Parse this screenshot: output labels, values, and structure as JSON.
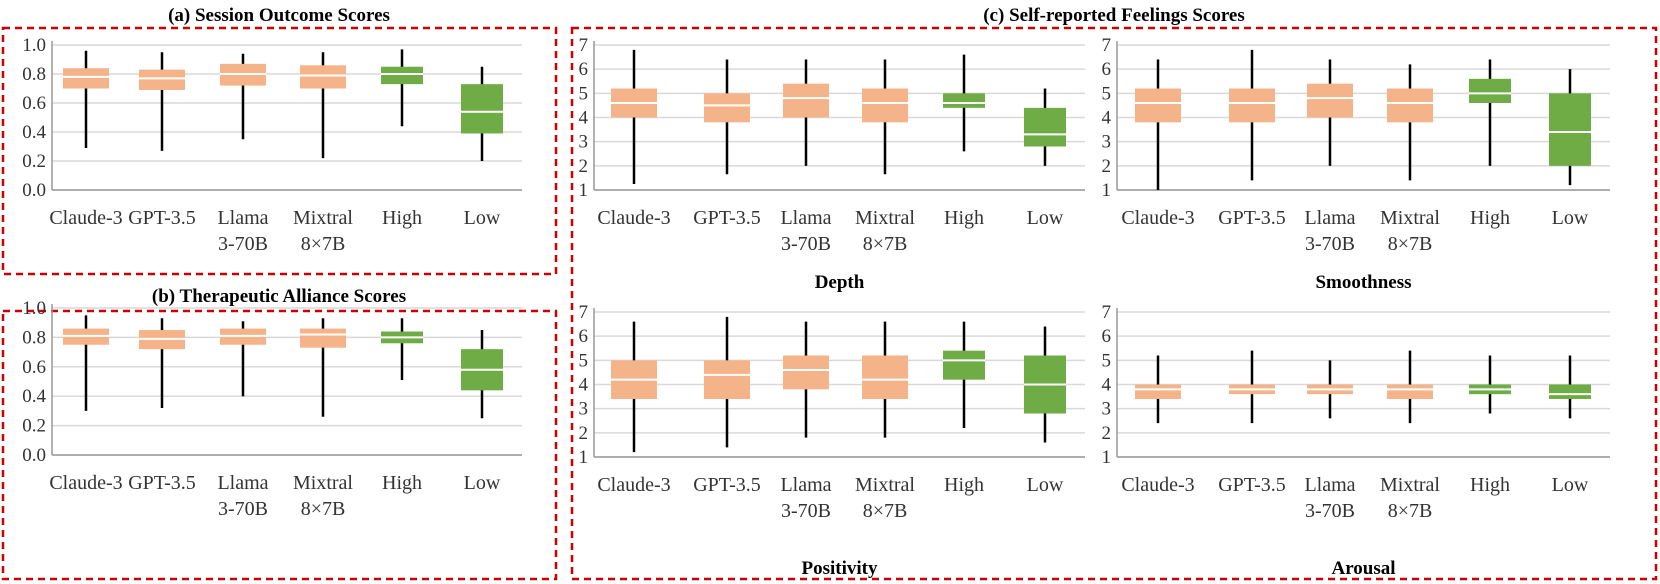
{
  "colors": {
    "llm_box": "#f5b38a",
    "human_box": "#6fac46",
    "median": "#ffffff",
    "whisker": "#000000",
    "grid": "#d9d9d9",
    "border": "#cc0000"
  },
  "panels": {
    "a": {
      "title": "(a) Session Outcome Scores"
    },
    "b": {
      "title": "(b) Therapeutic Alliance Scores"
    },
    "c": {
      "title": "(c) Self-reported Feelings Scores"
    }
  },
  "categories": [
    {
      "line1": "Claude-3",
      "line2": ""
    },
    {
      "line1": "GPT-3.5",
      "line2": ""
    },
    {
      "line1": "Llama",
      "line2": "3-70B"
    },
    {
      "line1": "Mixtral",
      "line2": "8×7B"
    },
    {
      "line1": "High",
      "line2": ""
    },
    {
      "line1": "Low",
      "line2": ""
    }
  ],
  "chart_data": [
    {
      "id": "session",
      "type": "boxplot",
      "title": "(a) Session Outcome Scores",
      "ylim": [
        0.0,
        1.0
      ],
      "yticks": [
        "0.0",
        "0.2",
        "0.4",
        "0.6",
        "0.8",
        "1.0"
      ],
      "boxes": [
        {
          "cat": "Claude-3",
          "min": 0.29,
          "q1": 0.7,
          "median": 0.78,
          "q3": 0.84,
          "max": 0.96,
          "group": "llm"
        },
        {
          "cat": "GPT-3.5",
          "min": 0.27,
          "q1": 0.69,
          "median": 0.77,
          "q3": 0.83,
          "max": 0.95,
          "group": "llm"
        },
        {
          "cat": "Llama 3-70B",
          "min": 0.35,
          "q1": 0.72,
          "median": 0.8,
          "q3": 0.87,
          "max": 0.94,
          "group": "llm"
        },
        {
          "cat": "Mixtral 8×7B",
          "min": 0.22,
          "q1": 0.7,
          "median": 0.79,
          "q3": 0.86,
          "max": 0.95,
          "group": "llm"
        },
        {
          "cat": "High",
          "min": 0.44,
          "q1": 0.73,
          "median": 0.8,
          "q3": 0.85,
          "max": 0.97,
          "group": "human"
        },
        {
          "cat": "Low",
          "min": 0.2,
          "q1": 0.39,
          "median": 0.54,
          "q3": 0.73,
          "max": 0.85,
          "group": "human"
        }
      ]
    },
    {
      "id": "alliance",
      "type": "boxplot",
      "title": "(b) Therapeutic Alliance Scores",
      "ylim": [
        0.0,
        1.0
      ],
      "yticks": [
        "0.0",
        "0.2",
        "0.4",
        "0.6",
        "0.8",
        "1.0"
      ],
      "boxes": [
        {
          "cat": "Claude-3",
          "min": 0.3,
          "q1": 0.75,
          "median": 0.81,
          "q3": 0.86,
          "max": 0.95,
          "group": "llm"
        },
        {
          "cat": "GPT-3.5",
          "min": 0.32,
          "q1": 0.72,
          "median": 0.79,
          "q3": 0.85,
          "max": 0.93,
          "group": "llm"
        },
        {
          "cat": "Llama 3-70B",
          "min": 0.4,
          "q1": 0.75,
          "median": 0.81,
          "q3": 0.86,
          "max": 0.91,
          "group": "llm"
        },
        {
          "cat": "Mixtral 8×7B",
          "min": 0.26,
          "q1": 0.73,
          "median": 0.82,
          "q3": 0.86,
          "max": 0.93,
          "group": "llm"
        },
        {
          "cat": "High",
          "min": 0.51,
          "q1": 0.76,
          "median": 0.8,
          "q3": 0.84,
          "max": 0.93,
          "group": "human"
        },
        {
          "cat": "Low",
          "min": 0.25,
          "q1": 0.44,
          "median": 0.58,
          "q3": 0.72,
          "max": 0.85,
          "group": "human"
        }
      ]
    },
    {
      "id": "depth",
      "type": "boxplot",
      "subtitle": "Depth",
      "ylim": [
        1,
        7
      ],
      "yticks": [
        "1",
        "2",
        "3",
        "4",
        "5",
        "6",
        "7"
      ],
      "boxes": [
        {
          "cat": "Claude-3",
          "min": 1.25,
          "q1": 4.0,
          "median": 4.6,
          "q3": 5.2,
          "max": 6.8,
          "group": "llm"
        },
        {
          "cat": "GPT-3.5",
          "min": 1.65,
          "q1": 3.8,
          "median": 4.5,
          "q3": 5.0,
          "max": 6.4,
          "group": "llm"
        },
        {
          "cat": "Llama 3-70B",
          "min": 2.0,
          "q1": 4.0,
          "median": 4.8,
          "q3": 5.4,
          "max": 6.4,
          "group": "llm"
        },
        {
          "cat": "Mixtral 8×7B",
          "min": 1.65,
          "q1": 3.8,
          "median": 4.6,
          "q3": 5.2,
          "max": 6.4,
          "group": "llm"
        },
        {
          "cat": "High",
          "min": 2.6,
          "q1": 4.4,
          "median": 4.6,
          "q3": 5.0,
          "max": 6.6,
          "group": "human"
        },
        {
          "cat": "Low",
          "min": 2.0,
          "q1": 2.8,
          "median": 3.3,
          "q3": 4.4,
          "max": 5.2,
          "group": "human"
        }
      ]
    },
    {
      "id": "smoothness",
      "type": "boxplot",
      "subtitle": "Smoothness",
      "ylim": [
        1,
        7
      ],
      "yticks": [
        "1",
        "2",
        "3",
        "4",
        "5",
        "6",
        "7"
      ],
      "boxes": [
        {
          "cat": "Claude-3",
          "min": 1.0,
          "q1": 3.8,
          "median": 4.6,
          "q3": 5.2,
          "max": 6.4,
          "group": "llm"
        },
        {
          "cat": "GPT-3.5",
          "min": 1.4,
          "q1": 3.8,
          "median": 4.6,
          "q3": 5.2,
          "max": 6.8,
          "group": "llm"
        },
        {
          "cat": "Llama 3-70B",
          "min": 2.0,
          "q1": 4.0,
          "median": 4.8,
          "q3": 5.4,
          "max": 6.4,
          "group": "llm"
        },
        {
          "cat": "Mixtral 8×7B",
          "min": 1.4,
          "q1": 3.8,
          "median": 4.6,
          "q3": 5.2,
          "max": 6.2,
          "group": "llm"
        },
        {
          "cat": "High",
          "min": 2.0,
          "q1": 4.6,
          "median": 5.0,
          "q3": 5.6,
          "max": 6.4,
          "group": "human"
        },
        {
          "cat": "Low",
          "min": 1.2,
          "q1": 2.0,
          "median": 3.4,
          "q3": 5.0,
          "max": 6.0,
          "group": "human"
        }
      ]
    },
    {
      "id": "positivity",
      "type": "boxplot",
      "subtitle": "Positivity",
      "ylim": [
        1,
        7
      ],
      "yticks": [
        "1",
        "2",
        "3",
        "4",
        "5",
        "6",
        "7"
      ],
      "boxes": [
        {
          "cat": "Claude-3",
          "min": 1.2,
          "q1": 3.4,
          "median": 4.2,
          "q3": 5.0,
          "max": 6.6,
          "group": "llm"
        },
        {
          "cat": "GPT-3.5",
          "min": 1.4,
          "q1": 3.4,
          "median": 4.4,
          "q3": 5.0,
          "max": 6.8,
          "group": "llm"
        },
        {
          "cat": "Llama 3-70B",
          "min": 1.8,
          "q1": 3.8,
          "median": 4.6,
          "q3": 5.2,
          "max": 6.6,
          "group": "llm"
        },
        {
          "cat": "Mixtral 8×7B",
          "min": 1.8,
          "q1": 3.4,
          "median": 4.2,
          "q3": 5.2,
          "max": 6.6,
          "group": "llm"
        },
        {
          "cat": "High",
          "min": 2.2,
          "q1": 4.2,
          "median": 5.0,
          "q3": 5.4,
          "max": 6.6,
          "group": "human"
        },
        {
          "cat": "Low",
          "min": 1.6,
          "q1": 2.8,
          "median": 4.0,
          "q3": 5.2,
          "max": 6.4,
          "group": "human"
        }
      ]
    },
    {
      "id": "arousal",
      "type": "boxplot",
      "subtitle": "Arousal",
      "ylim": [
        1,
        7
      ],
      "yticks": [
        "1",
        "2",
        "3",
        "4",
        "5",
        "6",
        "7"
      ],
      "boxes": [
        {
          "cat": "Claude-3",
          "min": 2.4,
          "q1": 3.4,
          "median": 3.8,
          "q3": 4.0,
          "max": 5.2,
          "group": "llm"
        },
        {
          "cat": "GPT-3.5",
          "min": 2.4,
          "q1": 3.6,
          "median": 3.8,
          "q3": 4.0,
          "max": 5.4,
          "group": "llm"
        },
        {
          "cat": "Llama 3-70B",
          "min": 2.6,
          "q1": 3.6,
          "median": 3.8,
          "q3": 4.0,
          "max": 5.0,
          "group": "llm"
        },
        {
          "cat": "Mixtral 8×7B",
          "min": 2.4,
          "q1": 3.4,
          "median": 3.8,
          "q3": 4.0,
          "max": 5.4,
          "group": "llm"
        },
        {
          "cat": "High",
          "min": 2.8,
          "q1": 3.6,
          "median": 3.8,
          "q3": 4.0,
          "max": 5.2,
          "group": "human"
        },
        {
          "cat": "Low",
          "min": 2.6,
          "q1": 3.4,
          "median": 3.6,
          "q3": 4.0,
          "max": 5.2,
          "group": "human"
        }
      ]
    }
  ]
}
